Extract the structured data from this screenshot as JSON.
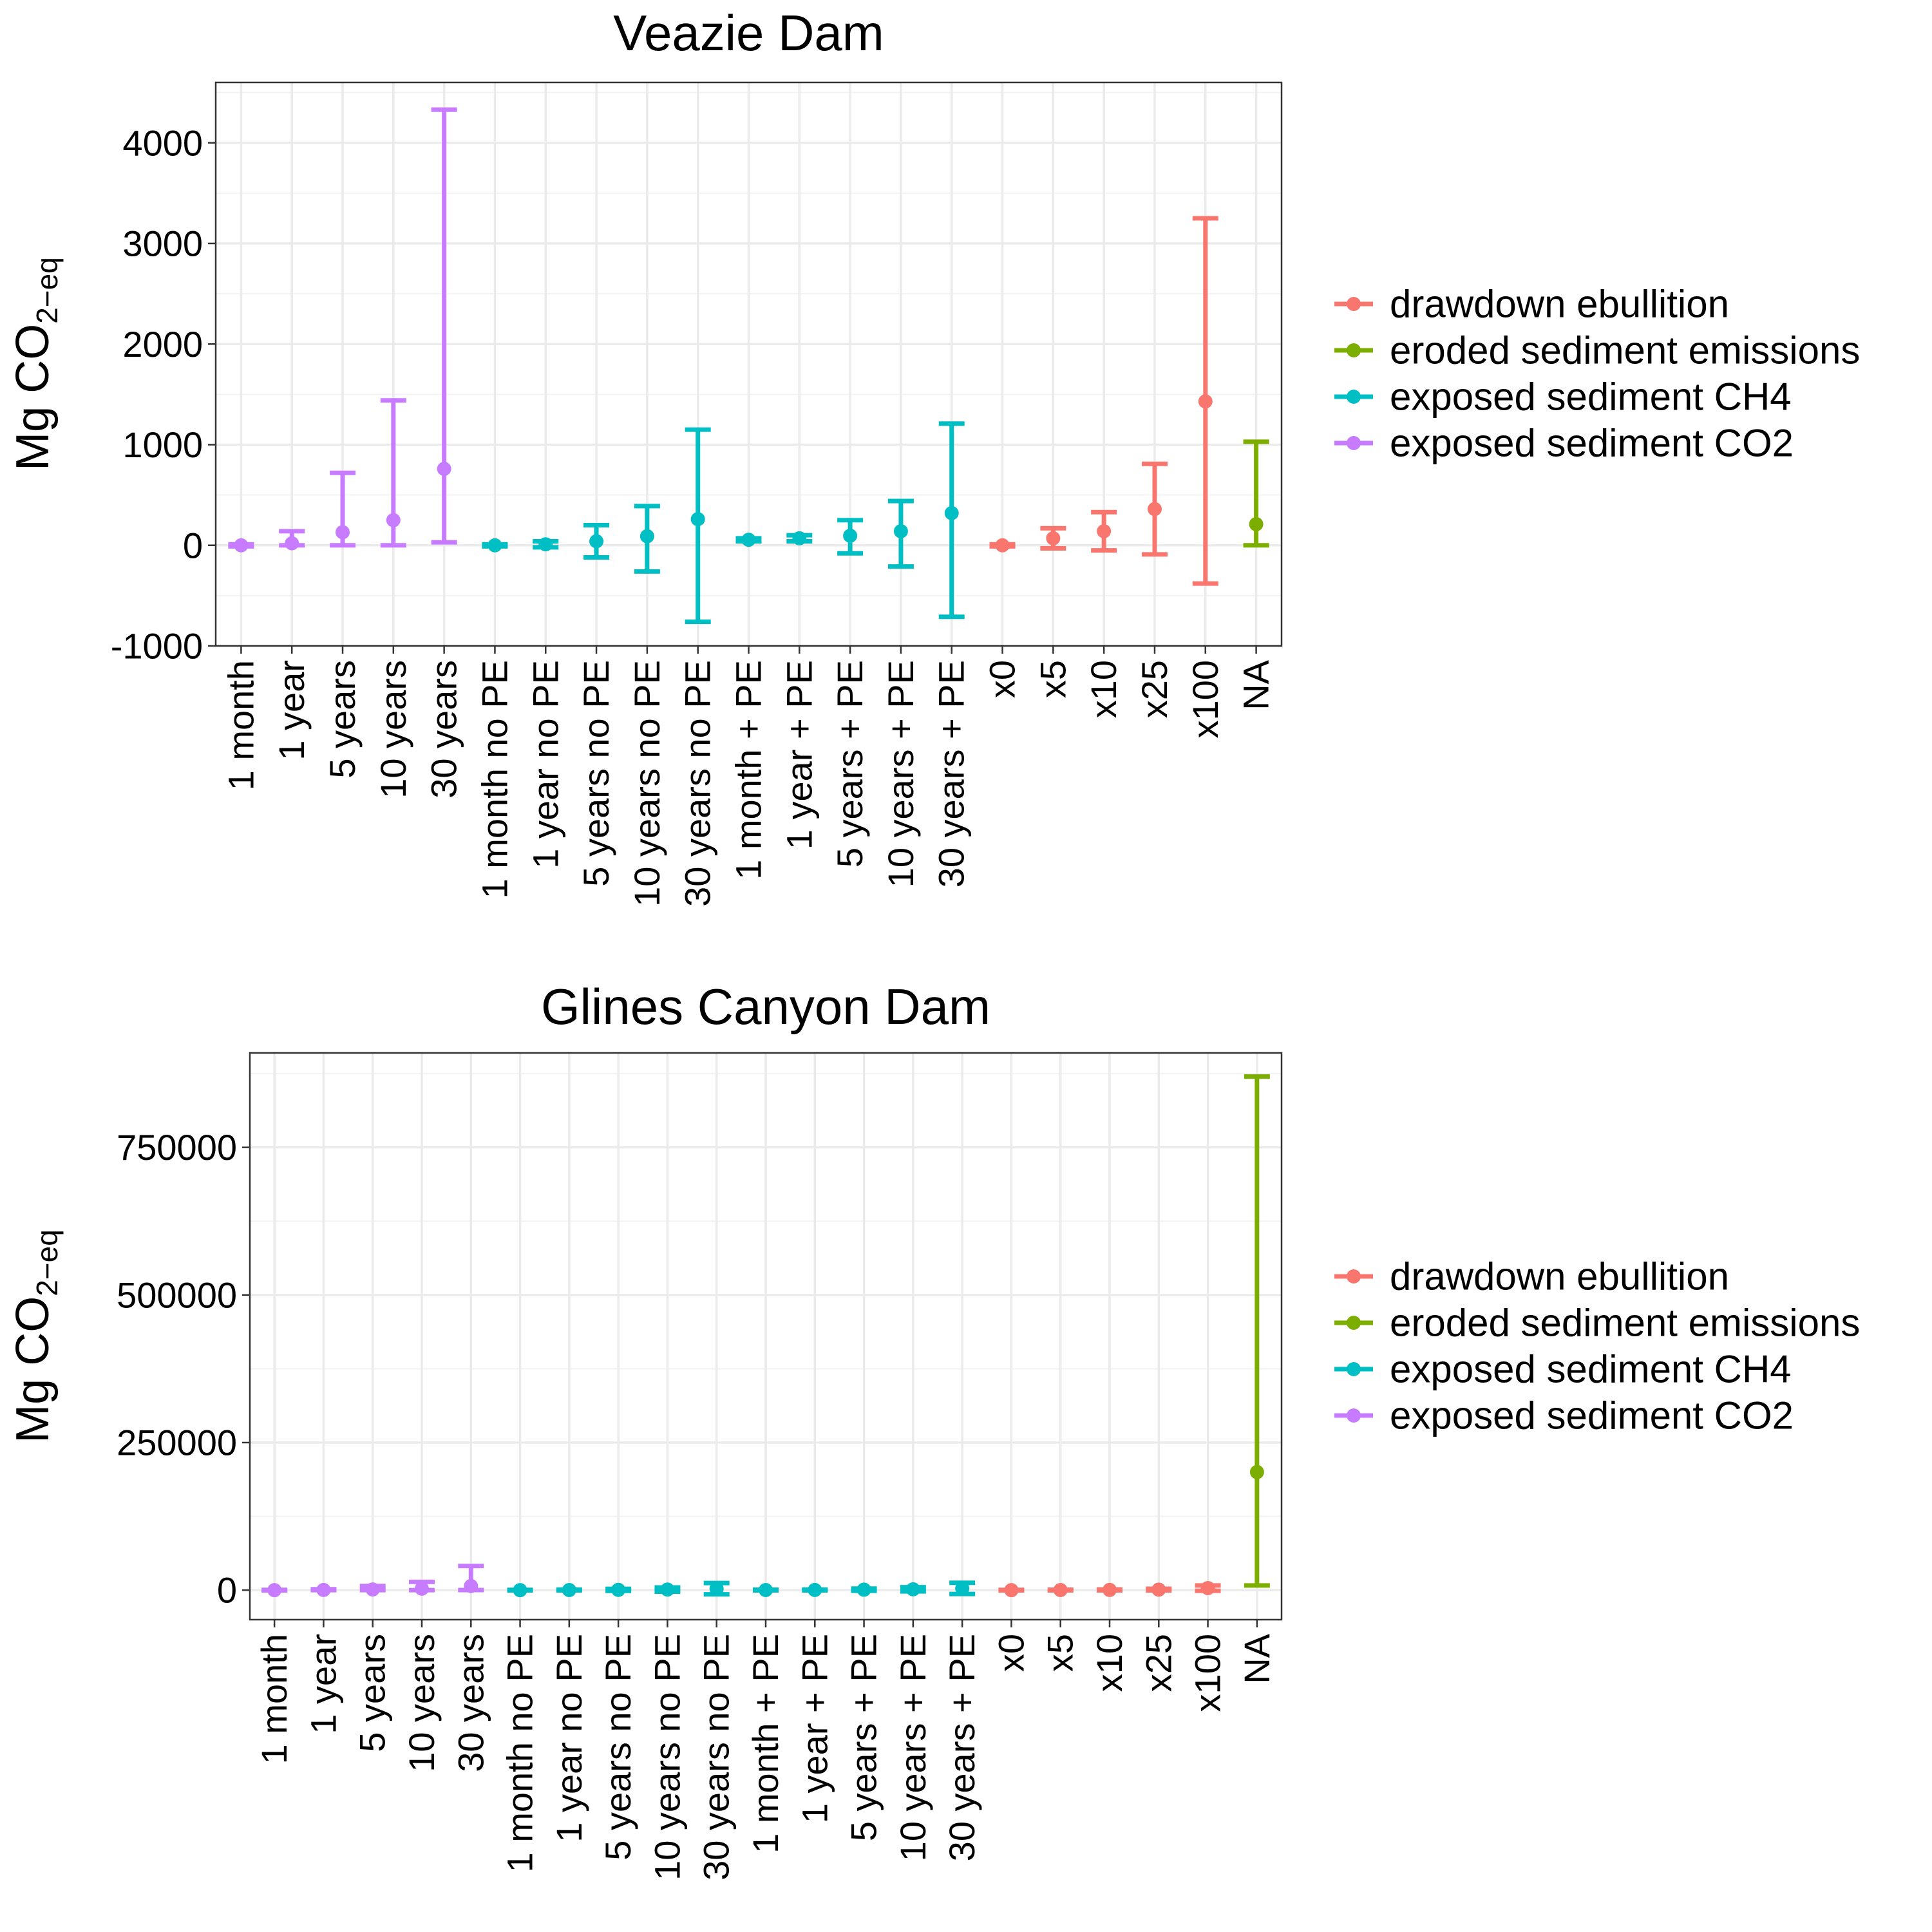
{
  "chart_data": [
    {
      "type": "errorbar",
      "title": "Veazie Dam",
      "ylabel": "Mg CO",
      "ylabel_sub": "2−eq",
      "ylim": [
        -1000,
        4600
      ],
      "yticks": [
        -1000,
        0,
        1000,
        2000,
        3000,
        4000
      ],
      "ytick_labels": [
        "-1000",
        "0",
        "1000",
        "2000",
        "3000",
        "4000"
      ],
      "grid": true,
      "legend_position": "right",
      "categories": [
        "1 month",
        "1 year",
        "5 years",
        "10 years",
        "30 years",
        "1 month no PE",
        "1 year no PE",
        "5 years no PE",
        "10 years no PE",
        "30 years no PE",
        "1 month + PE",
        "1 year + PE",
        "5 years + PE",
        "10 years + PE",
        "30 years + PE",
        "x0",
        "x5",
        "x10",
        "x25",
        "x100",
        "NA"
      ],
      "series": [
        {
          "name": "drawdown ebullition",
          "color": "#F8766D",
          "points": [
            {
              "x": "x0",
              "y": 0,
              "ymin": -10,
              "ymax": 10
            },
            {
              "x": "x5",
              "y": 70,
              "ymin": -30,
              "ymax": 170
            },
            {
              "x": "x10",
              "y": 140,
              "ymin": -50,
              "ymax": 330
            },
            {
              "x": "x25",
              "y": 360,
              "ymin": -90,
              "ymax": 810
            },
            {
              "x": "x100",
              "y": 1430,
              "ymin": -380,
              "ymax": 3250
            }
          ]
        },
        {
          "name": "eroded sediment emissions",
          "color": "#7CAE00",
          "points": [
            {
              "x": "NA",
              "y": 210,
              "ymin": 0,
              "ymax": 1030
            }
          ]
        },
        {
          "name": "exposed sediment CH4",
          "color": "#00BFC4",
          "points": [
            {
              "x": "1 month no PE",
              "y": 0,
              "ymin": -10,
              "ymax": 10
            },
            {
              "x": "1 year no PE",
              "y": 10,
              "ymin": -20,
              "ymax": 40
            },
            {
              "x": "5 years no PE",
              "y": 40,
              "ymin": -120,
              "ymax": 200
            },
            {
              "x": "10 years no PE",
              "y": 90,
              "ymin": -260,
              "ymax": 390
            },
            {
              "x": "30 years no PE",
              "y": 260,
              "ymin": -760,
              "ymax": 1150
            },
            {
              "x": "1 month + PE",
              "y": 55,
              "ymin": 40,
              "ymax": 70
            },
            {
              "x": "1 year + PE",
              "y": 70,
              "ymin": 40,
              "ymax": 100
            },
            {
              "x": "5 years + PE",
              "y": 95,
              "ymin": -80,
              "ymax": 250
            },
            {
              "x": "10 years + PE",
              "y": 140,
              "ymin": -210,
              "ymax": 440
            },
            {
              "x": "30 years + PE",
              "y": 320,
              "ymin": -710,
              "ymax": 1210
            }
          ]
        },
        {
          "name": "exposed sediment CO2",
          "color": "#C77CFF",
          "points": [
            {
              "x": "1 month",
              "y": 0,
              "ymin": -10,
              "ymax": 10
            },
            {
              "x": "1 year",
              "y": 20,
              "ymin": 0,
              "ymax": 140
            },
            {
              "x": "5 years",
              "y": 130,
              "ymin": 0,
              "ymax": 720
            },
            {
              "x": "10 years",
              "y": 250,
              "ymin": 0,
              "ymax": 1440
            },
            {
              "x": "30 years",
              "y": 760,
              "ymin": 30,
              "ymax": 4330
            }
          ]
        }
      ]
    },
    {
      "type": "errorbar",
      "title": "Glines Canyon Dam",
      "ylabel": "Mg CO",
      "ylabel_sub": "2−eq",
      "ylim": [
        -50000,
        910000
      ],
      "yticks": [
        0,
        250000,
        500000,
        750000
      ],
      "ytick_labels": [
        "0",
        "250000",
        "500000",
        "750000"
      ],
      "grid": true,
      "legend_position": "right",
      "categories": [
        "1 month",
        "1 year",
        "5 years",
        "10 years",
        "30 years",
        "1 month no PE",
        "1 year no PE",
        "5 years no PE",
        "10 years no PE",
        "30 years no PE",
        "1 month + PE",
        "1 year + PE",
        "5 years + PE",
        "10 years + PE",
        "30 years + PE",
        "x0",
        "x5",
        "x10",
        "x25",
        "x100",
        "NA"
      ],
      "series": [
        {
          "name": "drawdown ebullition",
          "color": "#F8766D",
          "points": [
            {
              "x": "x0",
              "y": 0,
              "ymin": -500,
              "ymax": 500
            },
            {
              "x": "x5",
              "y": 200,
              "ymin": -300,
              "ymax": 700
            },
            {
              "x": "x10",
              "y": 400,
              "ymin": -300,
              "ymax": 1100
            },
            {
              "x": "x25",
              "y": 900,
              "ymin": -500,
              "ymax": 2300
            },
            {
              "x": "x100",
              "y": 3500,
              "ymin": -1000,
              "ymax": 8000
            }
          ]
        },
        {
          "name": "eroded sediment emissions",
          "color": "#7CAE00",
          "points": [
            {
              "x": "NA",
              "y": 200000,
              "ymin": 8000,
              "ymax": 870000
            }
          ]
        },
        {
          "name": "exposed sediment CH4",
          "color": "#00BFC4",
          "points": [
            {
              "x": "1 month no PE",
              "y": 0,
              "ymin": -400,
              "ymax": 400
            },
            {
              "x": "1 year no PE",
              "y": 200,
              "ymin": -400,
              "ymax": 800
            },
            {
              "x": "5 years no PE",
              "y": 500,
              "ymin": -1200,
              "ymax": 2200
            },
            {
              "x": "10 years no PE",
              "y": 1000,
              "ymin": -2500,
              "ymax": 4500
            },
            {
              "x": "30 years no PE",
              "y": 2500,
              "ymin": -7000,
              "ymax": 12000
            },
            {
              "x": "1 month + PE",
              "y": 200,
              "ymin": -300,
              "ymax": 700
            },
            {
              "x": "1 year + PE",
              "y": 300,
              "ymin": -300,
              "ymax": 900
            },
            {
              "x": "5 years + PE",
              "y": 800,
              "ymin": -1000,
              "ymax": 2600
            },
            {
              "x": "10 years + PE",
              "y": 1400,
              "ymin": -2200,
              "ymax": 5000
            },
            {
              "x": "30 years + PE",
              "y": 3000,
              "ymin": -6500,
              "ymax": 12500
            }
          ]
        },
        {
          "name": "exposed sediment CO2",
          "color": "#C77CFF",
          "points": [
            {
              "x": "1 month",
              "y": 0,
              "ymin": -500,
              "ymax": 500
            },
            {
              "x": "1 year",
              "y": 300,
              "ymin": 0,
              "ymax": 1500
            },
            {
              "x": "5 years",
              "y": 1200,
              "ymin": 0,
              "ymax": 7000
            },
            {
              "x": "10 years",
              "y": 2500,
              "ymin": 0,
              "ymax": 14000
            },
            {
              "x": "30 years",
              "y": 7000,
              "ymin": 200,
              "ymax": 41000
            }
          ]
        }
      ]
    }
  ]
}
